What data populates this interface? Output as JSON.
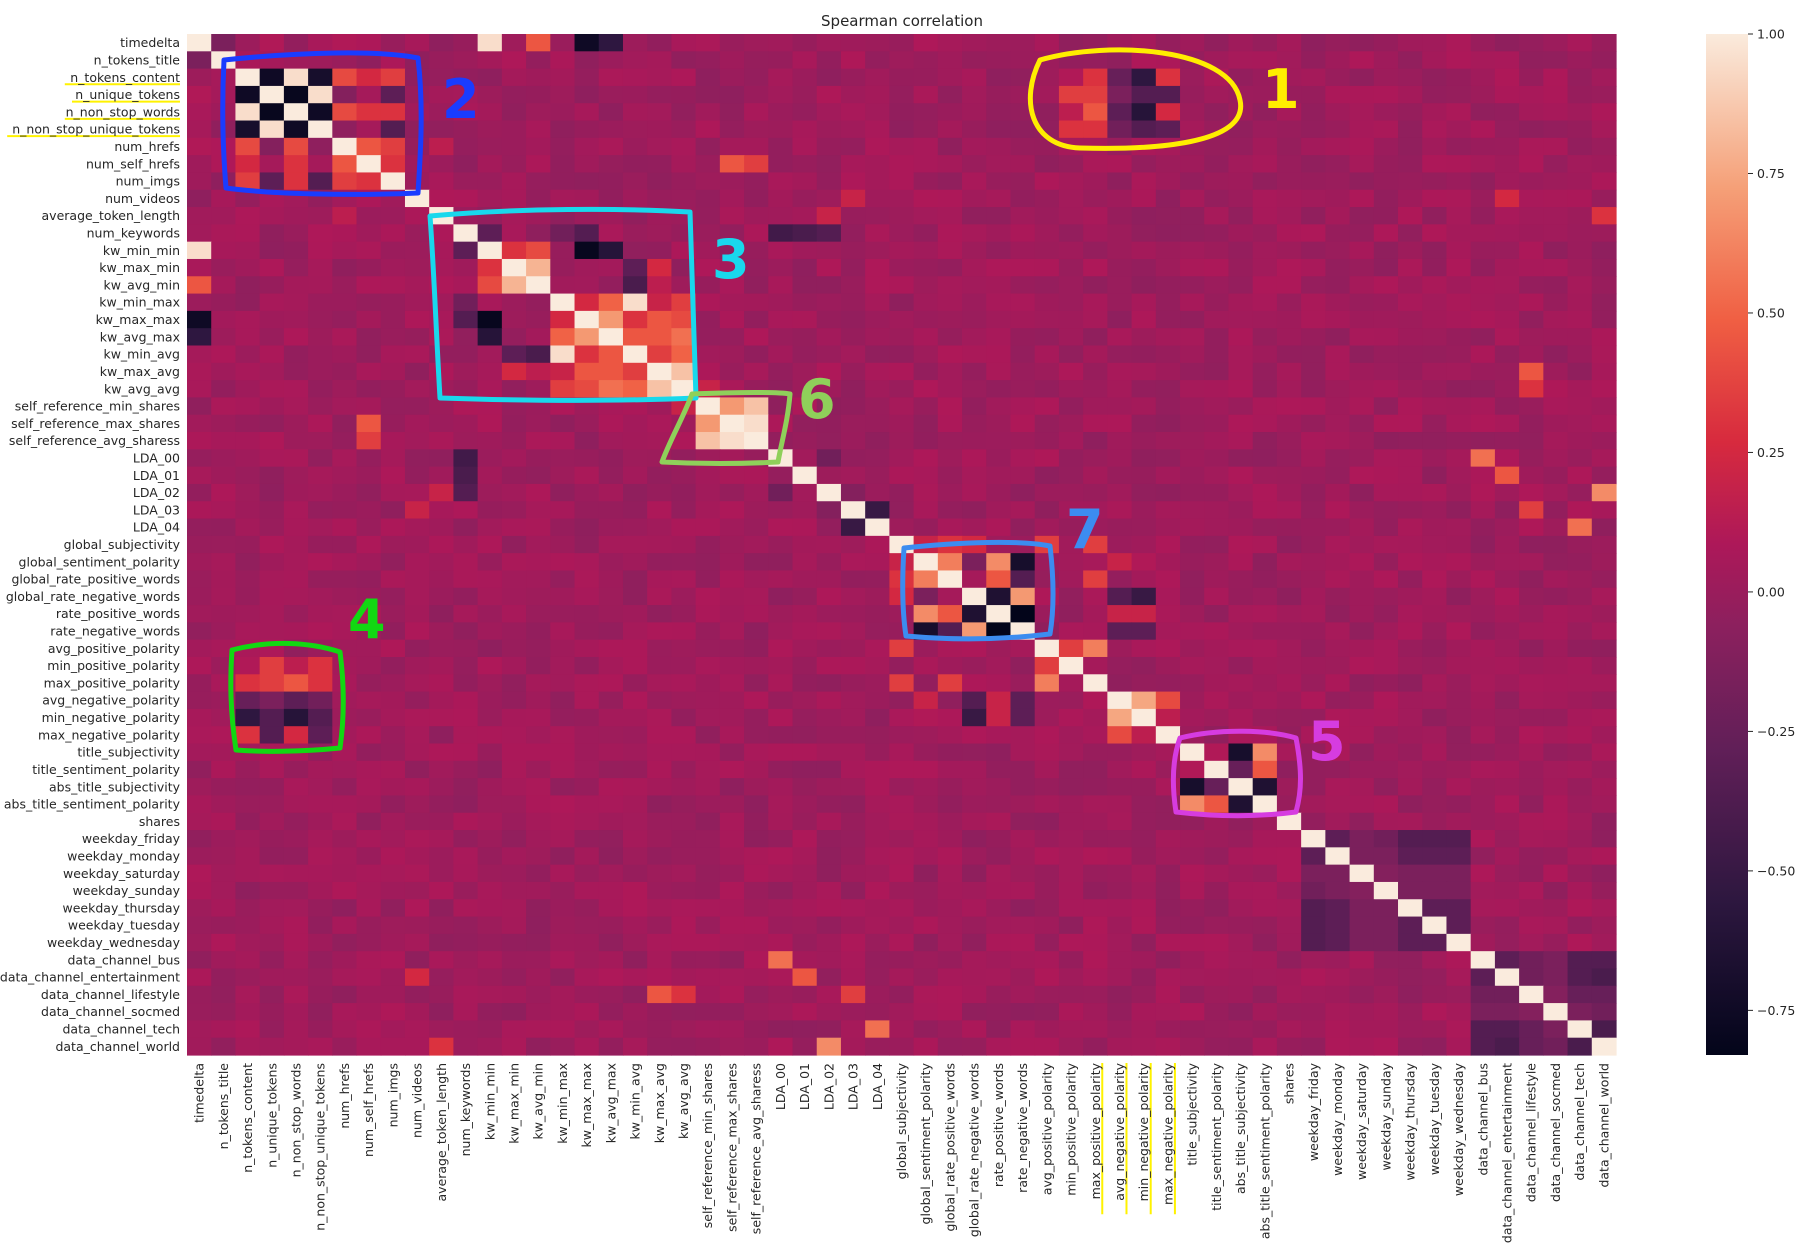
{
  "chart_data": {
    "type": "heatmap",
    "title": "Spearman correlation",
    "labels": [
      "timedelta",
      "n_tokens_title",
      "n_tokens_content",
      "n_unique_tokens",
      "n_non_stop_words",
      "n_non_stop_unique_tokens",
      "num_hrefs",
      "num_self_hrefs",
      "num_imgs",
      "num_videos",
      "average_token_length",
      "num_keywords",
      "kw_min_min",
      "kw_max_min",
      "kw_avg_min",
      "kw_min_max",
      "kw_max_max",
      "kw_avg_max",
      "kw_min_avg",
      "kw_max_avg",
      "kw_avg_avg",
      "self_reference_min_shares",
      "self_reference_max_shares",
      "self_reference_avg_sharess",
      "LDA_00",
      "LDA_01",
      "LDA_02",
      "LDA_03",
      "LDA_04",
      "global_subjectivity",
      "global_sentiment_polarity",
      "global_rate_positive_words",
      "global_rate_negative_words",
      "rate_positive_words",
      "rate_negative_words",
      "avg_positive_polarity",
      "min_positive_polarity",
      "max_positive_polarity",
      "avg_negative_polarity",
      "min_negative_polarity",
      "max_negative_polarity",
      "title_subjectivity",
      "title_sentiment_polarity",
      "abs_title_subjectivity",
      "abs_title_sentiment_polarity",
      "shares",
      "weekday_friday",
      "weekday_monday",
      "weekday_saturday",
      "weekday_sunday",
      "weekday_thursday",
      "weekday_tuesday",
      "weekday_wednesday",
      "data_channel_bus",
      "data_channel_entertainment",
      "data_channel_lifestyle",
      "data_channel_socmed",
      "data_channel_tech",
      "data_channel_world"
    ],
    "colorbar": {
      "range": [
        -0.83,
        1.0
      ],
      "ticks": [
        "1.00",
        "0.75",
        "0.50",
        "0.25",
        "0.00",
        "−0.25",
        "−0.50",
        "−0.75"
      ]
    },
    "base_value": 0.02,
    "cells": [
      [
        0,
        1,
        -0.15
      ],
      [
        0,
        3,
        0.1
      ],
      [
        0,
        12,
        0.95
      ],
      [
        0,
        14,
        0.45
      ],
      [
        0,
        16,
        -0.75
      ],
      [
        0,
        17,
        -0.55
      ],
      [
        0,
        6,
        0.1
      ],
      [
        1,
        3,
        0.05
      ],
      [
        2,
        3,
        -0.75
      ],
      [
        2,
        4,
        0.95
      ],
      [
        2,
        5,
        -0.7
      ],
      [
        2,
        6,
        0.4
      ],
      [
        2,
        7,
        0.25
      ],
      [
        2,
        8,
        0.35
      ],
      [
        3,
        4,
        -0.8
      ],
      [
        3,
        5,
        0.95
      ],
      [
        3,
        6,
        -0.1
      ],
      [
        3,
        7,
        0.05
      ],
      [
        3,
        8,
        -0.3
      ],
      [
        4,
        5,
        -0.75
      ],
      [
        4,
        6,
        0.4
      ],
      [
        4,
        7,
        0.3
      ],
      [
        4,
        8,
        0.3
      ],
      [
        5,
        6,
        -0.05
      ],
      [
        5,
        7,
        0.05
      ],
      [
        5,
        8,
        -0.35
      ],
      [
        6,
        7,
        0.45
      ],
      [
        6,
        8,
        0.35
      ],
      [
        6,
        10,
        0.15
      ],
      [
        7,
        8,
        0.3
      ],
      [
        7,
        22,
        0.45
      ],
      [
        7,
        23,
        0.35
      ],
      [
        9,
        54,
        0.25
      ],
      [
        9,
        27,
        0.2
      ],
      [
        10,
        26,
        0.2
      ],
      [
        10,
        58,
        0.3
      ],
      [
        11,
        12,
        -0.3
      ],
      [
        11,
        15,
        -0.2
      ],
      [
        11,
        16,
        -0.35
      ],
      [
        11,
        24,
        -0.45
      ],
      [
        11,
        25,
        -0.4
      ],
      [
        11,
        26,
        -0.35
      ],
      [
        12,
        13,
        0.3
      ],
      [
        12,
        14,
        0.4
      ],
      [
        12,
        16,
        -0.8
      ],
      [
        12,
        17,
        -0.6
      ],
      [
        13,
        14,
        0.8
      ],
      [
        13,
        18,
        -0.3
      ],
      [
        13,
        19,
        0.25
      ],
      [
        14,
        18,
        -0.4
      ],
      [
        14,
        19,
        0.15
      ],
      [
        15,
        16,
        0.25
      ],
      [
        15,
        17,
        0.5
      ],
      [
        15,
        18,
        0.95
      ],
      [
        15,
        19,
        0.2
      ],
      [
        15,
        20,
        0.35
      ],
      [
        16,
        17,
        0.7
      ],
      [
        16,
        18,
        0.3
      ],
      [
        16,
        19,
        0.45
      ],
      [
        16,
        20,
        0.4
      ],
      [
        17,
        18,
        0.45
      ],
      [
        17,
        19,
        0.45
      ],
      [
        17,
        20,
        0.55
      ],
      [
        18,
        19,
        0.35
      ],
      [
        18,
        20,
        0.5
      ],
      [
        19,
        20,
        0.85
      ],
      [
        19,
        55,
        0.45
      ],
      [
        20,
        21,
        0.2
      ],
      [
        20,
        55,
        0.3
      ],
      [
        21,
        22,
        0.7
      ],
      [
        21,
        23,
        0.85
      ],
      [
        22,
        23,
        0.95
      ],
      [
        24,
        53,
        0.55
      ],
      [
        24,
        26,
        -0.2
      ],
      [
        25,
        54,
        0.45
      ],
      [
        26,
        27,
        -0.1
      ],
      [
        26,
        58,
        0.65
      ],
      [
        27,
        28,
        -0.5
      ],
      [
        27,
        55,
        0.35
      ],
      [
        28,
        57,
        0.55
      ],
      [
        29,
        30,
        0.2
      ],
      [
        29,
        31,
        0.3
      ],
      [
        29,
        32,
        0.25
      ],
      [
        29,
        35,
        0.35
      ],
      [
        29,
        37,
        0.35
      ],
      [
        30,
        31,
        0.6
      ],
      [
        30,
        32,
        -0.15
      ],
      [
        30,
        33,
        0.65
      ],
      [
        30,
        34,
        -0.7
      ],
      [
        30,
        38,
        0.2
      ],
      [
        30,
        39,
        0.1
      ],
      [
        31,
        32,
        0.05
      ],
      [
        31,
        33,
        0.45
      ],
      [
        31,
        34,
        -0.35
      ],
      [
        31,
        37,
        0.35
      ],
      [
        32,
        33,
        -0.65
      ],
      [
        32,
        34,
        0.7
      ],
      [
        32,
        38,
        -0.35
      ],
      [
        32,
        39,
        -0.5
      ],
      [
        33,
        34,
        -0.85
      ],
      [
        33,
        38,
        0.2
      ],
      [
        33,
        39,
        0.2
      ],
      [
        34,
        38,
        -0.3
      ],
      [
        34,
        39,
        -0.3
      ],
      [
        35,
        36,
        0.35
      ],
      [
        35,
        37,
        0.6
      ],
      [
        36,
        37,
        0.05
      ],
      [
        38,
        39,
        0.75
      ],
      [
        38,
        40,
        0.4
      ],
      [
        39,
        40,
        0.15
      ],
      [
        41,
        42,
        0.1
      ],
      [
        41,
        43,
        -0.7
      ],
      [
        41,
        44,
        0.65
      ],
      [
        42,
        43,
        -0.25
      ],
      [
        42,
        44,
        0.45
      ],
      [
        43,
        44,
        -0.65
      ],
      [
        46,
        47,
        -0.3
      ],
      [
        46,
        48,
        -0.15
      ],
      [
        46,
        49,
        -0.2
      ],
      [
        46,
        50,
        -0.35
      ],
      [
        46,
        51,
        -0.35
      ],
      [
        46,
        52,
        -0.35
      ],
      [
        47,
        48,
        -0.15
      ],
      [
        47,
        49,
        -0.15
      ],
      [
        47,
        50,
        -0.3
      ],
      [
        47,
        51,
        -0.3
      ],
      [
        47,
        52,
        -0.3
      ],
      [
        48,
        49,
        -0.1
      ],
      [
        48,
        50,
        -0.15
      ],
      [
        48,
        51,
        -0.15
      ],
      [
        48,
        52,
        -0.15
      ],
      [
        49,
        50,
        -0.15
      ],
      [
        49,
        51,
        -0.15
      ],
      [
        49,
        52,
        -0.15
      ],
      [
        50,
        51,
        -0.3
      ],
      [
        50,
        52,
        -0.3
      ],
      [
        51,
        52,
        -0.3
      ],
      [
        53,
        54,
        -0.3
      ],
      [
        53,
        55,
        -0.2
      ],
      [
        53,
        56,
        -0.15
      ],
      [
        53,
        57,
        -0.35
      ],
      [
        53,
        58,
        -0.35
      ],
      [
        54,
        55,
        -0.2
      ],
      [
        54,
        56,
        -0.15
      ],
      [
        54,
        57,
        -0.35
      ],
      [
        54,
        58,
        -0.4
      ],
      [
        55,
        56,
        -0.1
      ],
      [
        55,
        57,
        -0.25
      ],
      [
        55,
        58,
        -0.25
      ],
      [
        56,
        57,
        -0.15
      ],
      [
        56,
        58,
        -0.2
      ],
      [
        57,
        58,
        -0.4
      ],
      [
        2,
        40,
        0.3
      ],
      [
        3,
        40,
        -0.35
      ],
      [
        4,
        40,
        0.25
      ],
      [
        5,
        40,
        -0.3
      ],
      [
        2,
        36,
        0.1
      ],
      [
        3,
        36,
        0.35
      ],
      [
        4,
        36,
        0.15
      ],
      [
        5,
        36,
        0.3
      ],
      [
        2,
        37,
        0.3
      ],
      [
        3,
        37,
        0.35
      ],
      [
        4,
        37,
        0.45
      ],
      [
        5,
        37,
        0.3
      ],
      [
        2,
        38,
        -0.25
      ],
      [
        3,
        38,
        -0.15
      ],
      [
        4,
        38,
        -0.3
      ],
      [
        5,
        38,
        -0.2
      ],
      [
        2,
        39,
        -0.55
      ],
      [
        3,
        39,
        -0.35
      ],
      [
        4,
        39,
        -0.6
      ],
      [
        5,
        39,
        -0.35
      ]
    ]
  },
  "annotations": [
    {
      "label": "1",
      "color": "#ffee00"
    },
    {
      "label": "2",
      "color": "#1a3cff"
    },
    {
      "label": "3",
      "color": "#19d8ec"
    },
    {
      "label": "4",
      "color": "#12d812"
    },
    {
      "label": "5",
      "color": "#d63ce0"
    },
    {
      "label": "6",
      "color": "#8fd05a"
    },
    {
      "label": "7",
      "color": "#3c8cf0"
    }
  ],
  "highlighted_labels": {
    "color": "#fff200",
    "y": [
      "n_tokens_content",
      "n_unique_tokens",
      "n_non_stop_words",
      "n_non_stop_unique_tokens"
    ],
    "x": [
      "max_positive_polarity",
      "avg_negative_polarity",
      "min_negative_polarity",
      "max_negative_polarity"
    ]
  }
}
